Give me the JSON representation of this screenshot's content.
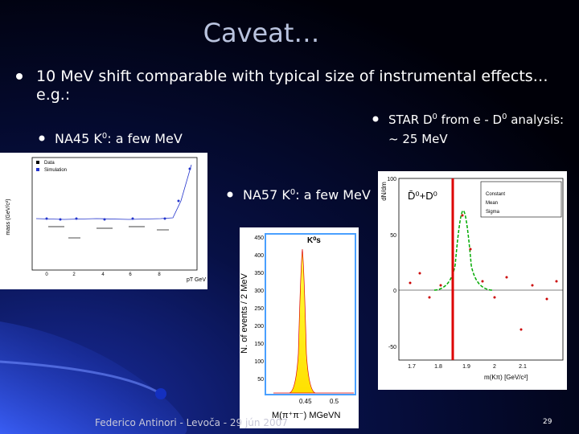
{
  "title": "Caveat…",
  "bullet_main": {
    "line1": "10 MeV shift comparable with typical size of instrumental effects…",
    "line2": "e.g.:"
  },
  "na45": {
    "pre": "NA45 K",
    "sup": "0",
    "post": ": a few MeV",
    "plot": {
      "ylabel": "mass (GeV/c²)",
      "legend": [
        "Data",
        "Simulation"
      ],
      "xlabel": "pT GeV",
      "xticks": [
        "0",
        "2",
        "4",
        "6",
        "8"
      ]
    }
  },
  "na57": {
    "pre": "NA57 K",
    "sup": "0",
    "post": ": a few MeV",
    "plot": {
      "ylabel": "N. of events / 2 MeV",
      "particle": "K⁰s",
      "yticks": [
        "450",
        "400",
        "350",
        "300",
        "250",
        "200",
        "150",
        "100",
        "50"
      ],
      "xticks": [
        "0.45",
        "0.5"
      ],
      "xlabel": "M(π⁺π⁻)  MGeVN"
    }
  },
  "star": {
    "line1_pre": "STAR D",
    "line1_sup": "0",
    "line1_post": " from e - D",
    "line1_sup2": "0",
    "line1_end": " analysis:",
    "line2": "~ 25 MeV",
    "plot": {
      "ylabel": "dN/dm",
      "legend": "D̄⁰+D⁰",
      "yticks": [
        "100",
        "50",
        "0",
        "-50"
      ],
      "xticks": [
        "1.7",
        "1.8",
        "1.9",
        "2",
        "2.1"
      ],
      "xlabel": "m(Kπ) [GeV/c²]",
      "stats": [
        "Constant",
        "Mean",
        "Sigma"
      ]
    }
  },
  "footer": "Federico Antinori - Levoča - 29 jún 2007",
  "page_number": "29"
}
